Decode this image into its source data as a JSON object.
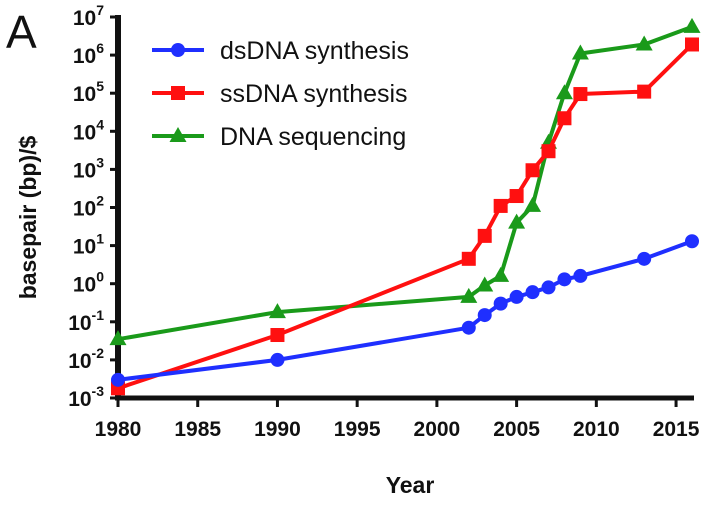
{
  "panel_label": "A",
  "colors": {
    "dsDNA": "#1f2fff",
    "ssDNA": "#ff1010",
    "seq": "#1a9a1a",
    "axis": "#111111"
  },
  "chart_data": {
    "type": "line",
    "title": "",
    "xlabel": "Year",
    "ylabel": "basepair (bp)/$",
    "yscale": "log",
    "xlim": [
      1980,
      2016
    ],
    "ylim_exp": [
      -3,
      7
    ],
    "x_ticks": [
      "1980",
      "1985",
      "1990",
      "1995",
      "2000",
      "2005",
      "2010",
      "2015"
    ],
    "y_tick_base": "10",
    "y_tick_exps": [
      "-3",
      "-2",
      "-1",
      "0",
      "1",
      "2",
      "3",
      "4",
      "5",
      "6",
      "7"
    ],
    "legend_position": "top-left",
    "grid": false,
    "series": [
      {
        "name": "dsDNA synthesis",
        "color": "#1f2fff",
        "marker": "circle",
        "points": [
          [
            1980,
            0.003
          ],
          [
            1990,
            0.01
          ],
          [
            2002,
            0.07
          ],
          [
            2003,
            0.15
          ],
          [
            2004,
            0.3
          ],
          [
            2005,
            0.45
          ],
          [
            2006,
            0.6
          ],
          [
            2007,
            0.8
          ],
          [
            2008,
            1.3
          ],
          [
            2009,
            1.6
          ],
          [
            2013,
            4.5
          ],
          [
            2016,
            13
          ]
        ]
      },
      {
        "name": "ssDNA synthesis",
        "color": "#ff1010",
        "marker": "square",
        "points": [
          [
            1980,
            0.0018
          ],
          [
            1990,
            0.045
          ],
          [
            2002,
            4.5
          ],
          [
            2003,
            18
          ],
          [
            2004,
            110
          ],
          [
            2005,
            200
          ],
          [
            2006,
            950
          ],
          [
            2007,
            3000
          ],
          [
            2008,
            22000
          ],
          [
            2009,
            95000
          ],
          [
            2013,
            110000
          ],
          [
            2016,
            1900000
          ]
        ]
      },
      {
        "name": "DNA sequencing",
        "color": "#1a9a1a",
        "marker": "triangle",
        "points": [
          [
            1980,
            0.035
          ],
          [
            1990,
            0.18
          ],
          [
            2002,
            0.45
          ],
          [
            2003,
            0.9
          ],
          [
            2004,
            1.6
          ],
          [
            2005,
            40
          ],
          [
            2006,
            110
          ],
          [
            2007,
            5000
          ],
          [
            2008,
            100000
          ],
          [
            2009,
            1100000
          ],
          [
            2013,
            1900000
          ],
          [
            2016,
            5500000
          ]
        ]
      }
    ]
  }
}
